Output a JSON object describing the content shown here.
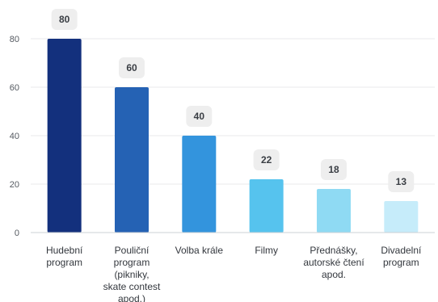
{
  "chart_data": {
    "type": "bar",
    "categories": [
      [
        "Hudební",
        "program"
      ],
      [
        "Pouliční",
        "program",
        "(pikniky,",
        "skate contest",
        "apod.)"
      ],
      [
        "Volba krále"
      ],
      [
        "Filmy"
      ],
      [
        "Přednášky,",
        "autorské čtení",
        "apod."
      ],
      [
        "Divadelní",
        "program"
      ]
    ],
    "values": [
      80,
      60,
      40,
      22,
      18,
      13
    ],
    "value_labels": [
      "80",
      "60",
      "40",
      "22",
      "18",
      "13"
    ],
    "colors": [
      "#13307d",
      "#2562b4",
      "#3394dd",
      "#56c3ee",
      "#8fdaf3",
      "#c6ecfa"
    ],
    "ylim": [
      0,
      80
    ],
    "yticks": [
      0,
      20,
      40,
      60,
      80
    ],
    "ytick_labels": [
      "0",
      "20",
      "40",
      "60",
      "80"
    ],
    "grid": true,
    "title": "",
    "xlabel": "",
    "ylabel": ""
  }
}
